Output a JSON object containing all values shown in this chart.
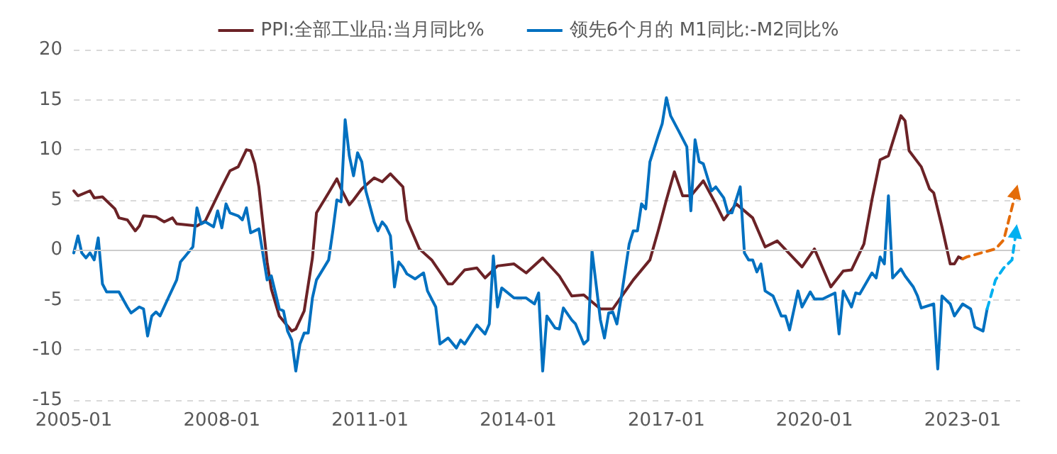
{
  "chart_data": {
    "type": "line",
    "legend": "top",
    "grid": "y",
    "line_style": "solid",
    "xlim": [
      "2005-01",
      "2024-03"
    ],
    "xticks": [
      "2005-01",
      "2008-01",
      "2011-01",
      "2014-01",
      "2017-01",
      "2020-01",
      "2023-01"
    ],
    "ylim": [
      -15,
      20
    ],
    "yticks": [
      -15,
      -10,
      -5,
      0,
      5,
      10,
      15,
      20
    ],
    "ref_lines": [
      {
        "axis": "y",
        "value": 0,
        "color": "#cccccc",
        "line_style": "solid"
      }
    ],
    "series": [
      {
        "name": "PPI:全部工业品:当月同比%",
        "color": "#6b2226",
        "x": [
          "2005-01",
          "2005-02",
          "2005-05",
          "2005-06",
          "2005-08",
          "2005-11",
          "2005-12",
          "2006-02",
          "2006-04",
          "2006-05",
          "2006-06",
          "2006-09",
          "2006-11",
          "2007-01",
          "2007-02",
          "2007-07",
          "2007-09",
          "2007-11",
          "2008-01",
          "2008-03",
          "2008-05",
          "2008-07",
          "2008-08",
          "2008-09",
          "2008-10",
          "2008-12",
          "2009-01",
          "2009-03",
          "2009-06",
          "2009-07",
          "2009-09",
          "2009-11",
          "2009-12",
          "2010-03",
          "2010-05",
          "2010-06",
          "2010-08",
          "2010-09",
          "2010-11",
          "2011-02",
          "2011-04",
          "2011-06",
          "2011-09",
          "2011-10",
          "2012-01",
          "2012-04",
          "2012-08",
          "2012-09",
          "2012-12",
          "2013-03",
          "2013-05",
          "2013-08",
          "2013-12",
          "2014-03",
          "2014-07",
          "2014-11",
          "2015-02",
          "2015-05",
          "2015-09",
          "2015-12",
          "2016-05",
          "2016-09",
          "2016-11",
          "2017-01",
          "2017-03",
          "2017-05",
          "2017-07",
          "2017-10",
          "2018-01",
          "2018-03",
          "2018-06",
          "2018-10",
          "2019-01",
          "2019-04",
          "2019-10",
          "2020-01",
          "2020-05",
          "2020-08",
          "2020-10",
          "2021-01",
          "2021-03",
          "2021-05",
          "2021-07",
          "2021-10",
          "2021-11",
          "2021-12",
          "2022-03",
          "2022-05",
          "2022-06",
          "2022-08",
          "2022-10",
          "2022-11",
          "2022-12",
          "2023-01"
        ],
        "values": [
          5.9,
          5.4,
          5.9,
          5.2,
          5.3,
          4.1,
          3.2,
          3.0,
          1.9,
          2.4,
          3.4,
          3.3,
          2.8,
          3.2,
          2.6,
          2.4,
          2.9,
          4.6,
          6.3,
          7.9,
          8.3,
          10.0,
          9.9,
          8.6,
          6.3,
          -1.2,
          -3.9,
          -6.6,
          -8.1,
          -7.9,
          -6.1,
          -0.8,
          3.7,
          5.7,
          7.1,
          6.1,
          4.5,
          5.0,
          6.1,
          7.2,
          6.8,
          7.6,
          6.3,
          3.0,
          0.1,
          -1.0,
          -3.4,
          -3.4,
          -2.0,
          -1.8,
          -2.8,
          -1.6,
          -1.4,
          -2.3,
          -0.8,
          -2.6,
          -4.6,
          -4.5,
          -5.9,
          -5.9,
          -3.0,
          -1.0,
          1.9,
          5.0,
          7.8,
          5.4,
          5.4,
          6.9,
          4.6,
          3.0,
          4.6,
          3.2,
          0.3,
          0.9,
          -1.7,
          0.1,
          -3.7,
          -2.1,
          -2.0,
          0.6,
          5.0,
          9.0,
          9.4,
          13.4,
          12.9,
          9.9,
          8.3,
          6.1,
          5.7,
          2.3,
          -1.4,
          -1.4,
          -0.7,
          -0.9
        ]
      },
      {
        "name": "领先6个月的 M1同比:-M2同比%",
        "color": "#0070c0",
        "x": [
          "2005-01",
          "2005-02",
          "2005-03",
          "2005-04",
          "2005-05",
          "2005-06",
          "2005-07",
          "2005-08",
          "2005-09",
          "2005-12",
          "2006-02",
          "2006-03",
          "2006-05",
          "2006-06",
          "2006-07",
          "2006-08",
          "2006-09",
          "2006-10",
          "2006-12",
          "2007-02",
          "2007-03",
          "2007-04",
          "2007-06",
          "2007-07",
          "2007-08",
          "2007-09",
          "2007-11",
          "2007-12",
          "2008-01",
          "2008-02",
          "2008-03",
          "2008-05",
          "2008-06",
          "2008-07",
          "2008-08",
          "2008-10",
          "2008-12",
          "2009-01",
          "2009-03",
          "2009-04",
          "2009-05",
          "2009-06",
          "2009-07",
          "2009-08",
          "2009-09",
          "2009-10",
          "2009-11",
          "2009-12",
          "2010-03",
          "2010-04",
          "2010-05",
          "2010-06",
          "2010-07",
          "2010-08",
          "2010-09",
          "2010-10",
          "2010-11",
          "2010-12",
          "2011-02",
          "2011-03",
          "2011-04",
          "2011-05",
          "2011-06",
          "2011-07",
          "2011-08",
          "2011-09",
          "2011-10",
          "2011-12",
          "2012-02",
          "2012-03",
          "2012-05",
          "2012-06",
          "2012-08",
          "2012-10",
          "2012-11",
          "2012-12",
          "2013-03",
          "2013-05",
          "2013-06",
          "2013-07",
          "2013-08",
          "2013-09",
          "2013-12",
          "2014-03",
          "2014-05",
          "2014-06",
          "2014-07",
          "2014-08",
          "2014-10",
          "2014-11",
          "2014-12",
          "2015-02",
          "2015-03",
          "2015-05",
          "2015-06",
          "2015-07",
          "2015-09",
          "2015-10",
          "2015-11",
          "2015-12",
          "2016-01",
          "2016-02",
          "2016-04",
          "2016-05",
          "2016-06",
          "2016-07",
          "2016-08",
          "2016-09",
          "2016-11",
          "2016-12",
          "2017-01",
          "2017-02",
          "2017-04",
          "2017-06",
          "2017-07",
          "2017-08",
          "2017-09",
          "2017-10",
          "2017-12",
          "2018-01",
          "2018-03",
          "2018-04",
          "2018-05",
          "2018-07",
          "2018-08",
          "2018-09",
          "2018-10",
          "2018-11",
          "2018-12",
          "2019-01",
          "2019-03",
          "2019-05",
          "2019-06",
          "2019-07",
          "2019-09",
          "2019-10",
          "2019-12",
          "2020-01",
          "2020-03",
          "2020-06",
          "2020-07",
          "2020-08",
          "2020-10",
          "2020-11",
          "2020-12",
          "2021-03",
          "2021-04",
          "2021-05",
          "2021-06",
          "2021-07",
          "2021-08",
          "2021-10",
          "2021-11",
          "2022-01",
          "2022-02",
          "2022-03",
          "2022-06",
          "2022-07",
          "2022-08",
          "2022-10",
          "2022-11",
          "2023-01",
          "2023-03",
          "2023-04",
          "2023-06",
          "2023-07"
        ],
        "values": [
          -0.3,
          1.4,
          -0.3,
          -0.8,
          -0.3,
          -1.0,
          1.2,
          -3.4,
          -4.2,
          -4.2,
          -5.7,
          -6.3,
          -5.7,
          -5.9,
          -8.6,
          -6.6,
          -6.2,
          -6.6,
          -4.8,
          -3.0,
          -1.2,
          -0.7,
          0.3,
          4.2,
          2.6,
          2.8,
          2.3,
          3.9,
          2.2,
          4.6,
          3.7,
          3.4,
          3.0,
          4.2,
          1.7,
          2.1,
          -3.0,
          -2.6,
          -5.9,
          -6.1,
          -8.1,
          -9.0,
          -12.1,
          -9.4,
          -8.3,
          -8.3,
          -4.8,
          -3.0,
          -1.0,
          1.9,
          5.0,
          4.8,
          13.0,
          9.4,
          7.4,
          9.7,
          8.8,
          5.9,
          2.8,
          1.9,
          2.8,
          2.3,
          1.4,
          -3.7,
          -1.2,
          -1.7,
          -2.4,
          -2.9,
          -2.3,
          -4.1,
          -5.7,
          -9.4,
          -8.8,
          -9.8,
          -9.0,
          -9.4,
          -7.5,
          -8.4,
          -7.4,
          -0.6,
          -5.7,
          -3.8,
          -4.8,
          -4.8,
          -5.4,
          -4.3,
          -12.1,
          -6.6,
          -7.8,
          -7.9,
          -5.8,
          -7.0,
          -7.4,
          -9.4,
          -9.0,
          -0.1,
          -7.0,
          -8.8,
          -6.3,
          -6.2,
          -7.4,
          -4.8,
          0.6,
          1.9,
          1.9,
          4.6,
          4.1,
          8.8,
          11.4,
          12.6,
          15.2,
          13.4,
          11.9,
          10.3,
          3.9,
          11.0,
          8.8,
          8.6,
          5.9,
          6.3,
          5.2,
          3.7,
          3.7,
          6.3,
          -0.3,
          -1.0,
          -1.0,
          -2.2,
          -1.4,
          -4.1,
          -4.6,
          -6.6,
          -6.6,
          -8.0,
          -4.1,
          -5.7,
          -4.2,
          -4.9,
          -4.9,
          -4.3,
          -8.4,
          -4.1,
          -5.7,
          -4.3,
          -4.4,
          -2.3,
          -2.8,
          -0.7,
          -1.4,
          5.4,
          -2.8,
          -1.9,
          -2.6,
          -3.7,
          -4.6,
          -5.8,
          -5.4,
          -11.9,
          -4.6,
          -5.4,
          -6.6,
          -5.4,
          -5.9,
          -7.7,
          -8.1,
          -5.9
        ]
      },
      {
        "color": "#e46c0a",
        "line_style": "dashed",
        "x": [
          "2023-01",
          "2023-02",
          "2023-09",
          "2023-11",
          "2024-02"
        ],
        "values": [
          -0.9,
          -0.7,
          0.1,
          1.0,
          5.9
        ]
      },
      {
        "color": "#00b0f0",
        "line_style": "dashed",
        "x": [
          "2023-07",
          "2023-09",
          "2023-11",
          "2024-01",
          "2024-02"
        ],
        "values": [
          -5.9,
          -3.0,
          -1.8,
          -1.0,
          1.9
        ]
      }
    ]
  }
}
